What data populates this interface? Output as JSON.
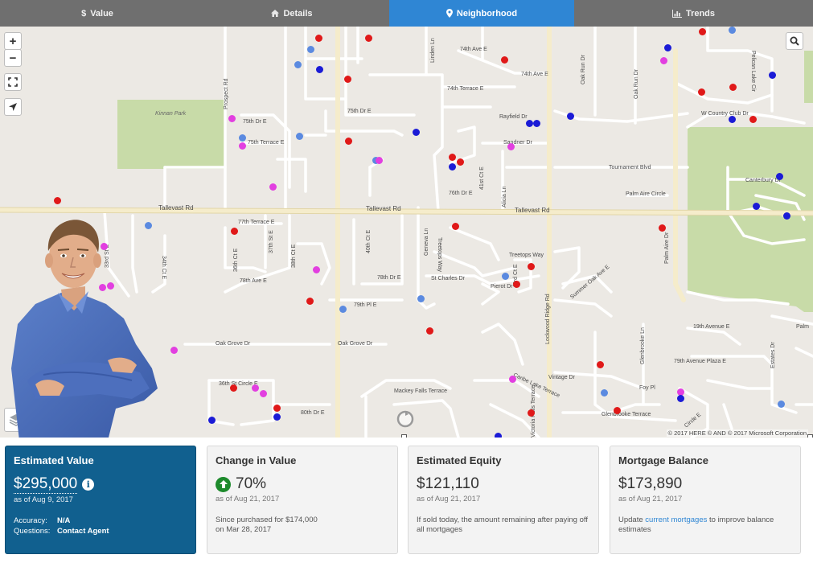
{
  "tabs": [
    {
      "label": "Value",
      "icon": "dollar-icon",
      "active": false
    },
    {
      "label": "Details",
      "icon": "home-icon",
      "active": false
    },
    {
      "label": "Neighborhood",
      "icon": "location-pin-icon",
      "active": true
    },
    {
      "label": "Trends",
      "icon": "bar-chart-icon",
      "active": false
    }
  ],
  "map": {
    "controls": {
      "zoom_in": "+",
      "zoom_out": "−"
    },
    "attribution": "© 2017 HERE  © AND  © 2017 Microsoft Corporation",
    "park_label": "Kinnan Park",
    "street_labels": {
      "s1": "74th Ave E",
      "s2": "74th Ave E",
      "s3": "74th Terrace E",
      "s4": "75th Dr E",
      "s5": "75th Terrace E",
      "s6": "Rayfield Dr",
      "s7": "Sandner Dr",
      "s8": "Tournament Blvd",
      "s9": "Palm Aire Circle",
      "s10": "W Country Club Dr",
      "s11": "Tallevast Rd",
      "s12": "Tallevast Rd",
      "s13": "Tallevast Rd",
      "s14": "77th Terrace E",
      "s15": "78th Ave E",
      "s16": "78th Dr E",
      "s17": "St Charles Dr",
      "s18": "Treetops Way",
      "s19": "79th Pl E",
      "s20": "Oak Grove Dr",
      "s21": "Oak Grove Dr",
      "s22": "36th St Circle E",
      "s23": "80th Dr E",
      "s24": "Vintage Dr",
      "s25": "Foy Pl",
      "s26": "Glenbrooke Terrace",
      "s27": "79th Avenue Plaza E",
      "s28": "19th Avenue E",
      "s29": "Prospect Rd",
      "s30": "Lockwood Ridge Rd",
      "s31": "Palm Aire Dr",
      "s32": "Linden Ln",
      "s33": "Canterbury Dr",
      "s34": "76th Dr E",
      "s35": "Oak Run Dr",
      "s36": "Glenbrooke Ln",
      "s37": "Estates Dr",
      "s38": "Circle E",
      "s39": "Mackey Falls Terrace",
      "s40": "Caribe Lake Terrace",
      "s41": "Victoria Falls Terrace",
      "s42": "Summer Oak Ave E",
      "s43": "Pierot Dr",
      "s44": "Pelican Lake Cir",
      "s45": "Palm",
      "s46": "33rd St E",
      "s47": "34th Ct E",
      "s48": "36th Ct E",
      "s49": "37th St E",
      "s50": "38th Ct E",
      "s51": "40th Ct E",
      "s52": "41st Ct E",
      "s53": "43rd Ct E",
      "s54": "Alicia Ln",
      "s55": "Geneva Ln"
    }
  },
  "cards": [
    {
      "title": "Estimated Value",
      "value": "$295,000",
      "as_of": "as of Aug 9, 2017",
      "accuracy_label": "Accuracy:",
      "accuracy_value": "N/A",
      "questions_label": "Questions:",
      "questions_value": "Contact Agent"
    },
    {
      "title": "Change in Value",
      "value": "70%",
      "as_of": "as of Aug 21, 2017",
      "desc_1": "Since purchased for $174,000",
      "desc_2": "on Mar 28, 2017"
    },
    {
      "title": "Estimated Equity",
      "value": "$121,110",
      "as_of": "as of Aug 21, 2017",
      "desc_1": "If sold today, the amount remaining after paying off",
      "desc_2": "all mortgages"
    },
    {
      "title": "Mortgage Balance",
      "value": "$173,890",
      "as_of": "as of Aug 21, 2017",
      "desc_pre": "Update ",
      "desc_link": "current mortgages",
      "desc_post": " to improve balance",
      "desc_2": "estimates"
    }
  ],
  "colors": {
    "active_tab": "#2f86d4",
    "primary_card": "#11608f",
    "sale_red": "#e01919",
    "blue": "#1b1bd6",
    "light_blue": "#5b8ae0",
    "pink": "#e23fe0"
  }
}
